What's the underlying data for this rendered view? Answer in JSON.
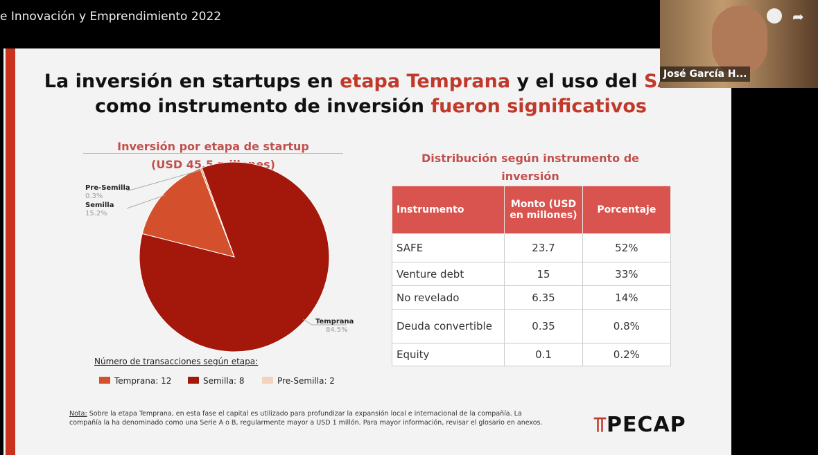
{
  "video_title": "e Innovación y Emprendimiento 2022",
  "webcam_name": "José García H...",
  "slide": {
    "title_line1": [
      "La inversión en startups en ",
      "etapa Temprana",
      " y el uso del ",
      "SAFE"
    ],
    "title_line2": [
      "como instrumento de inversión ",
      "fueron significativos"
    ],
    "logo": "PECAP",
    "note_label": "Nota:",
    "note_text": " Sobre la etapa Temprana, en esta fase el capital es utilizado para profundizar la expansión local e internacional de la compañía. La compañía la ha denominado como una Serie A o B, regularmente mayor a USD 1 millón. Para mayor información, revisar el glosario en anexos."
  },
  "chart_data": {
    "type": "pie",
    "title": "Inversión por etapa de startup",
    "subtitle": "(USD 45.5 millones)",
    "categories": [
      "Temprana",
      "Semilla",
      "Pre-Semilla"
    ],
    "values": [
      84.5,
      15.2,
      0.3
    ],
    "value_labels": [
      "84.5%",
      "15.2%",
      "0.3%"
    ],
    "colors": [
      "#a3180b",
      "#d4502c",
      "#ec9a78"
    ]
  },
  "transactions": {
    "title": "Número de transacciones según etapa:",
    "items": [
      {
        "label": "Temprana: 12",
        "color": "#d4502c"
      },
      {
        "label": "Semilla: 8",
        "color": "#a3180b"
      },
      {
        "label": "Pre-Semilla: 2",
        "color": "#f3d3bd"
      }
    ]
  },
  "table": {
    "title": "Distribución según instrumento de inversión",
    "header": [
      "Instrumento",
      "Monto (USD en millones)",
      "Porcentaje"
    ],
    "rows": [
      [
        "SAFE",
        "23.7",
        "52%"
      ],
      [
        "Venture debt",
        "15",
        "33%"
      ],
      [
        "No revelado",
        "6.35",
        "14%"
      ],
      [
        "Deuda convertible",
        "0.35",
        "0.8%"
      ],
      [
        "Equity",
        "0.1",
        "0.2%"
      ]
    ]
  }
}
